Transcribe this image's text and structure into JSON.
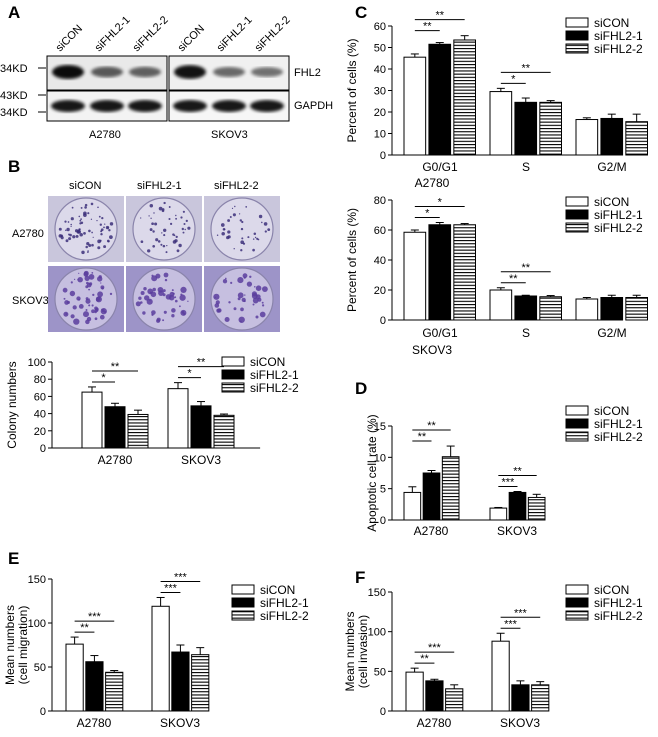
{
  "panel_letters": {
    "A": "A",
    "B": "B",
    "C": "C",
    "D": "D",
    "E": "E",
    "F": "F"
  },
  "western_blot": {
    "lanes": [
      "siCON",
      "siFHL2-1",
      "siFHL2-2",
      "siCON",
      "siFHL2-1",
      "siFHL2-2"
    ],
    "markers": [
      "34KD",
      "43KD",
      "34KD"
    ],
    "proteins": [
      "FHL2",
      "GAPDH"
    ],
    "cell_lines": [
      "A2780",
      "SKOV3"
    ],
    "fhl2_band_intensity": [
      1.0,
      0.45,
      0.4,
      0.95,
      0.35,
      0.3
    ]
  },
  "colony_images": {
    "columns": [
      "siCON",
      "siFHL2-1",
      "siFHL2-2"
    ],
    "rows": [
      "A2780",
      "SKOV3"
    ]
  },
  "colors": {
    "siCON": "#ffffff",
    "siFHL2-1": "#000000",
    "siFHL2-2": "striped"
  },
  "chart_data": [
    {
      "id": "B_colony",
      "type": "bar",
      "categories": [
        "A2780",
        "SKOV3"
      ],
      "series": [
        {
          "name": "siCON",
          "values": [
            65,
            69
          ],
          "errors": [
            6,
            7
          ]
        },
        {
          "name": "siFHL2-1",
          "values": [
            48,
            49
          ],
          "errors": [
            4,
            5
          ]
        },
        {
          "name": "siFHL2-2",
          "values": [
            39,
            38
          ],
          "errors": [
            5,
            1.5
          ]
        }
      ],
      "ylabel": "Colony numbers",
      "ylim": [
        0,
        100
      ],
      "yticks": [
        0,
        20,
        40,
        60,
        80,
        100
      ],
      "significance": [
        {
          "category": 0,
          "from": 0,
          "to": 1,
          "label": "*"
        },
        {
          "category": 0,
          "from": 0,
          "to": 2,
          "label": "**"
        },
        {
          "category": 1,
          "from": 0,
          "to": 1,
          "label": "*"
        },
        {
          "category": 1,
          "from": 0,
          "to": 2,
          "label": "**"
        }
      ]
    },
    {
      "id": "C_A2780",
      "type": "bar",
      "title": "A2780",
      "categories": [
        "G0/G1",
        "S",
        "G2/M"
      ],
      "series": [
        {
          "name": "siCON",
          "values": [
            45.5,
            29.5,
            16.5
          ],
          "errors": [
            1.5,
            1.5,
            0.8
          ]
        },
        {
          "name": "siFHL2-1",
          "values": [
            51.5,
            24.5,
            17.0
          ],
          "errors": [
            0.8,
            2.0,
            2.0
          ]
        },
        {
          "name": "siFHL2-2",
          "values": [
            53.5,
            24.5,
            15.5
          ],
          "errors": [
            2.0,
            0.8,
            3.5
          ]
        }
      ],
      "ylabel": "Percent of cells (%)",
      "ylim": [
        0,
        60
      ],
      "yticks": [
        0,
        10,
        20,
        30,
        40,
        50,
        60
      ],
      "significance": [
        {
          "category": 0,
          "from": 0,
          "to": 1,
          "label": "**"
        },
        {
          "category": 0,
          "from": 0,
          "to": 2,
          "label": "**"
        },
        {
          "category": 1,
          "from": 0,
          "to": 1,
          "label": "*"
        },
        {
          "category": 1,
          "from": 0,
          "to": 2,
          "label": "**"
        }
      ]
    },
    {
      "id": "C_SKOV3",
      "type": "bar",
      "title": "SKOV3",
      "categories": [
        "G0/G1",
        "S",
        "G2/M"
      ],
      "series": [
        {
          "name": "siCON",
          "values": [
            58.5,
            20.0,
            14.0
          ],
          "errors": [
            1.5,
            1.5,
            1.0
          ]
        },
        {
          "name": "siFHL2-1",
          "values": [
            63.5,
            16.0,
            15.0
          ],
          "errors": [
            1.5,
            0.5,
            1.5
          ]
        },
        {
          "name": "siFHL2-2",
          "values": [
            63.5,
            15.5,
            15.0
          ],
          "errors": [
            0.8,
            0.8,
            1.5
          ]
        }
      ],
      "ylabel": "Percent of cells (%)",
      "ylim": [
        0,
        80
      ],
      "yticks": [
        0,
        20,
        40,
        60,
        80
      ],
      "significance": [
        {
          "category": 0,
          "from": 0,
          "to": 1,
          "label": "*"
        },
        {
          "category": 0,
          "from": 0,
          "to": 2,
          "label": "*"
        },
        {
          "category": 1,
          "from": 0,
          "to": 1,
          "label": "**"
        },
        {
          "category": 1,
          "from": 0,
          "to": 2,
          "label": "**"
        }
      ]
    },
    {
      "id": "D_apoptosis",
      "type": "bar",
      "categories": [
        "A2780",
        "SKOV3"
      ],
      "series": [
        {
          "name": "siCON",
          "values": [
            4.4,
            1.9
          ],
          "errors": [
            0.9,
            0.1
          ]
        },
        {
          "name": "siFHL2-1",
          "values": [
            7.5,
            4.4
          ],
          "errors": [
            0.4,
            0.15
          ]
        },
        {
          "name": "siFHL2-2",
          "values": [
            10.1,
            3.6
          ],
          "errors": [
            1.7,
            0.5
          ]
        }
      ],
      "ylabel": "Apoptotic cell rate (%)",
      "ylim": [
        0,
        15
      ],
      "yticks": [
        0,
        5,
        10,
        15
      ],
      "significance": [
        {
          "category": 0,
          "from": 0,
          "to": 1,
          "label": "**"
        },
        {
          "category": 0,
          "from": 0,
          "to": 2,
          "label": "**"
        },
        {
          "category": 1,
          "from": 0,
          "to": 1,
          "label": "***"
        },
        {
          "category": 1,
          "from": 0,
          "to": 2,
          "label": "**"
        }
      ]
    },
    {
      "id": "E_migration",
      "type": "bar",
      "categories": [
        "A2780",
        "SKOV3"
      ],
      "series": [
        {
          "name": "siCON",
          "values": [
            76,
            119
          ],
          "errors": [
            8,
            10
          ]
        },
        {
          "name": "siFHL2-1",
          "values": [
            56,
            67
          ],
          "errors": [
            7,
            8
          ]
        },
        {
          "name": "siFHL2-2",
          "values": [
            44,
            64
          ],
          "errors": [
            2,
            8
          ]
        }
      ],
      "ylabel": "Mean numbers\n(cell migration)",
      "ylim": [
        0,
        150
      ],
      "yticks": [
        0,
        50,
        100,
        150
      ],
      "significance": [
        {
          "category": 0,
          "from": 0,
          "to": 1,
          "label": "**"
        },
        {
          "category": 0,
          "from": 0,
          "to": 2,
          "label": "***"
        },
        {
          "category": 1,
          "from": 0,
          "to": 1,
          "label": "***"
        },
        {
          "category": 1,
          "from": 0,
          "to": 2,
          "label": "***"
        }
      ]
    },
    {
      "id": "F_invasion",
      "type": "bar",
      "categories": [
        "A2780",
        "SKOV3"
      ],
      "series": [
        {
          "name": "siCON",
          "values": [
            49,
            88
          ],
          "errors": [
            5,
            10
          ]
        },
        {
          "name": "siFHL2-1",
          "values": [
            38,
            33
          ],
          "errors": [
            2,
            5
          ]
        },
        {
          "name": "siFHL2-2",
          "values": [
            28,
            33
          ],
          "errors": [
            5,
            4
          ]
        }
      ],
      "ylabel": "Mean numbers\n(cell invasion)",
      "ylim": [
        0,
        150
      ],
      "yticks": [
        0,
        50,
        100,
        150
      ],
      "significance": [
        {
          "category": 0,
          "from": 0,
          "to": 1,
          "label": "**"
        },
        {
          "category": 0,
          "from": 0,
          "to": 2,
          "label": "***"
        },
        {
          "category": 1,
          "from": 0,
          "to": 1,
          "label": "***"
        },
        {
          "category": 1,
          "from": 0,
          "to": 2,
          "label": "***"
        }
      ]
    }
  ]
}
